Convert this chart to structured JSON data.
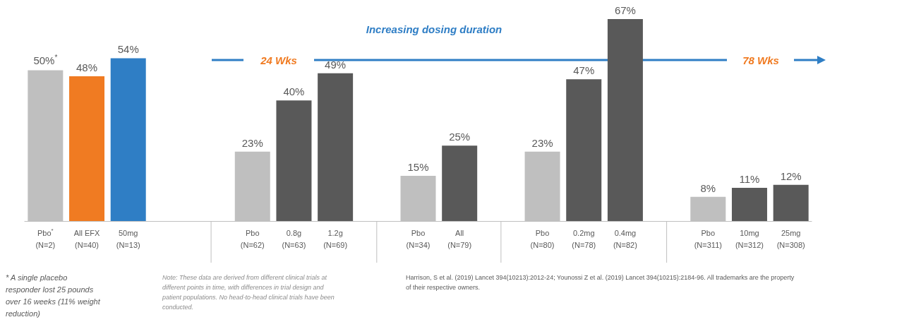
{
  "chart_data": {
    "type": "bar",
    "categories": [
      "Pbo$^{*}$\n(N=2)",
      "All EFX\n(N=40)",
      "50mg\n(N=13)",
      null,
      null,
      "Pbo\n(N=62)",
      "0.8g\n(N=63)",
      "1.2g\n(N=69)",
      null,
      "Pbo\n(N=34)",
      "All\n(N=79)",
      null,
      "Pbo\n(N=80)",
      "0.2mg\n(N=78)",
      "0.4mg\n(N=82)",
      null,
      "Pbo\n(N=311)",
      "10mg\n(N=312)",
      "25mg\n(N=308)"
    ],
    "values": [
      50,
      48,
      54,
      null,
      null,
      23,
      40,
      49,
      null,
      15,
      25,
      null,
      23,
      47,
      67,
      null,
      8,
      11,
      12
    ],
    "value_labels": [
      "50%$^{*}$",
      "48%",
      "54%",
      null,
      null,
      "23%",
      "40%",
      "49%",
      null,
      "15%",
      "25%",
      null,
      "23%",
      "47%",
      "67%",
      null,
      "8%",
      "11%",
      "12%"
    ],
    "colors": [
      "#bfbfbf",
      "#f07b22",
      "#2f7ec5",
      null,
      null,
      "#bfbfbf",
      "#595959",
      "#595959",
      null,
      "#bfbfbf",
      "#595959",
      null,
      "#bfbfbf",
      "#595959",
      "#595959",
      null,
      "#bfbfbf",
      "#595959",
      "#595959"
    ],
    "annotations": [
      "Increasing dosing duration",
      "24 Wks",
      "78 Wks",
      "* A single placebo responder lost 25 pounds over 16 weeks (11% weight reduction)",
      "Note: These data are derived from different clinical trials at different points in time, with differences in trial design and patient populations. No head-to-head clinical trials have been conducted.",
      "Harrison, S et al. (2019) Lancet 394(10213):2012-24; Younossi Z et al. (2019) Lancet 394(10215):2184-96. All trademarks are the property of their respective owners."
    ],
    "legend": false,
    "grid": false
  }
}
